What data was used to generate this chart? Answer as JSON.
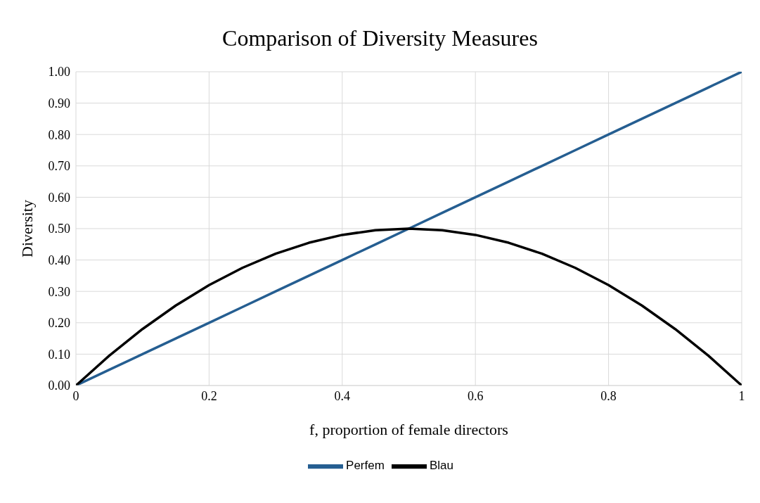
{
  "chart_data": {
    "type": "line",
    "title": "Comparison of Diversity Measures",
    "xlabel": "f, proportion of female directors",
    "ylabel": "Diversity",
    "x": [
      0,
      0.05,
      0.1,
      0.15,
      0.2,
      0.25,
      0.3,
      0.35,
      0.4,
      0.45,
      0.5,
      0.55,
      0.6,
      0.65,
      0.7,
      0.75,
      0.8,
      0.85,
      0.9,
      0.95,
      1
    ],
    "series": [
      {
        "name": "Perfem",
        "color": "#255e91",
        "values": [
          0,
          0.05,
          0.1,
          0.15,
          0.2,
          0.25,
          0.3,
          0.35,
          0.4,
          0.45,
          0.5,
          0.55,
          0.6,
          0.65,
          0.7,
          0.75,
          0.8,
          0.85,
          0.9,
          0.95,
          1
        ]
      },
      {
        "name": "Blau",
        "color": "#000000",
        "values": [
          0,
          0.095,
          0.18,
          0.255,
          0.32,
          0.375,
          0.42,
          0.455,
          0.48,
          0.495,
          0.5,
          0.495,
          0.48,
          0.455,
          0.42,
          0.375,
          0.32,
          0.255,
          0.18,
          0.095,
          0
        ]
      }
    ],
    "xlim": [
      0,
      1
    ],
    "xticks": [
      0,
      0.2,
      0.4,
      0.6,
      0.8,
      1
    ],
    "ylim": [
      0,
      1
    ],
    "yticks": [
      {
        "value": 0,
        "label": "0.00"
      },
      {
        "value": 0.1,
        "label": "0.10"
      },
      {
        "value": 0.2,
        "label": "0.20"
      },
      {
        "value": 0.3,
        "label": "0.30"
      },
      {
        "value": 0.4,
        "label": "0.40"
      },
      {
        "value": 0.5,
        "label": "0.50"
      },
      {
        "value": 0.6,
        "label": "0.60"
      },
      {
        "value": 0.7,
        "label": "0.70"
      },
      {
        "value": 0.8,
        "label": "0.80"
      },
      {
        "value": 0.9,
        "label": "0.90"
      },
      {
        "value": 1,
        "label": "1.00"
      }
    ],
    "grid": true,
    "legend": "bottom",
    "marker": "none",
    "line_style": "solid"
  }
}
